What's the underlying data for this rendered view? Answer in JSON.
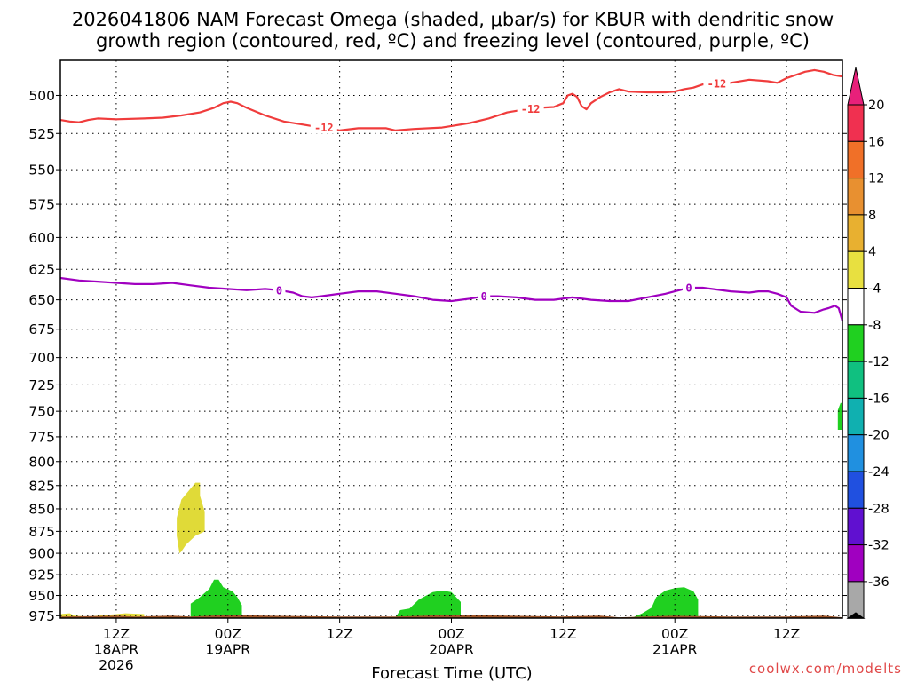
{
  "chart_data": {
    "type": "heatmap",
    "title_lines": [
      "2026041806 NAM Forecast Omega (shaded, μbar/s) for KBUR with dendritic snow",
      "growth region (contoured, red, ºC) and freezing level (contoured, purple, ºC)"
    ],
    "xlabel": "Forecast Time (UTC)",
    "y_ticks": [
      500,
      525,
      550,
      575,
      600,
      625,
      650,
      675,
      700,
      725,
      750,
      775,
      800,
      825,
      850,
      875,
      900,
      925,
      950,
      975
    ],
    "y_axis": "pressure (hPa), logarithmic, inverted",
    "ylim": [
      978,
      478
    ],
    "xlim_hours": [
      0,
      84
    ],
    "grid": true,
    "x_ticks": [
      {
        "hour": 6,
        "lines": [
          "12Z",
          "18APR",
          "2026"
        ]
      },
      {
        "hour": 18,
        "lines": [
          "00Z",
          "19APR"
        ]
      },
      {
        "hour": 30,
        "lines": [
          "12Z"
        ]
      },
      {
        "hour": 42,
        "lines": [
          "00Z",
          "20APR"
        ]
      },
      {
        "hour": 54,
        "lines": [
          "12Z"
        ]
      },
      {
        "hour": 66,
        "lines": [
          "00Z",
          "21APR"
        ]
      },
      {
        "hour": 78,
        "lines": [
          "12Z"
        ]
      }
    ],
    "colorbar": {
      "labels": [
        "20",
        "16",
        "12",
        "8",
        "4",
        "-4",
        "-8",
        "-12",
        "-16",
        "-20",
        "-24",
        "-28",
        "-32",
        "-36"
      ],
      "colors": [
        "#f03050",
        "#f07028",
        "#e89030",
        "#e8b030",
        "#e8e040",
        "#ffffff",
        "#20d020",
        "#10c080",
        "#10b0b0",
        "#2090e0",
        "#2050e0",
        "#6010d0",
        "#a000c0",
        "#a8a8a8"
      ],
      "top_arrow_color": "#e8207a",
      "bottom_arrow_color": "#000000"
    },
    "series": [
      {
        "contour": "red",
        "color": "#f03c3c",
        "labels": [
          {
            "hour": 28.3,
            "text": "-12"
          },
          {
            "hour": 50.5,
            "text": "-12"
          },
          {
            "hour": 70.5,
            "text": "-12"
          }
        ],
        "points": [
          [
            0,
            516
          ],
          [
            1,
            517
          ],
          [
            2,
            517.5
          ],
          [
            3,
            516
          ],
          [
            4,
            515
          ],
          [
            6,
            515.5
          ],
          [
            9,
            515
          ],
          [
            11,
            514.5
          ],
          [
            13,
            513
          ],
          [
            15,
            511
          ],
          [
            16.5,
            508
          ],
          [
            17.5,
            505
          ],
          [
            18.3,
            504
          ],
          [
            19,
            505
          ],
          [
            20,
            508
          ],
          [
            22,
            513
          ],
          [
            24,
            517
          ],
          [
            26,
            519
          ],
          [
            27,
            520
          ],
          [
            28.3,
            521
          ],
          [
            30,
            523
          ],
          [
            32,
            521.5
          ],
          [
            35,
            521.5
          ],
          [
            36,
            523
          ],
          [
            38,
            522
          ],
          [
            41,
            521
          ],
          [
            42,
            520
          ],
          [
            44,
            518
          ],
          [
            46,
            515
          ],
          [
            48,
            511
          ],
          [
            50,
            509
          ],
          [
            51.5,
            508
          ],
          [
            53,
            507.5
          ],
          [
            54,
            505
          ],
          [
            54.5,
            500
          ],
          [
            55,
            499
          ],
          [
            55.5,
            501
          ],
          [
            56,
            507
          ],
          [
            56.5,
            509
          ],
          [
            57,
            505
          ],
          [
            58,
            501
          ],
          [
            59,
            498
          ],
          [
            60,
            496
          ],
          [
            61,
            497.5
          ],
          [
            63,
            498
          ],
          [
            65,
            498
          ],
          [
            66,
            497.5
          ],
          [
            67,
            496
          ],
          [
            68,
            495
          ],
          [
            69,
            493
          ],
          [
            70.5,
            492.5
          ],
          [
            72,
            492
          ],
          [
            74,
            490
          ],
          [
            76,
            491
          ],
          [
            77,
            492
          ],
          [
            78,
            489
          ],
          [
            80,
            485
          ],
          [
            81,
            484
          ],
          [
            82,
            485
          ],
          [
            83,
            487
          ],
          [
            84,
            488
          ]
        ]
      },
      {
        "contour": "purple",
        "color": "#a000c0",
        "labels": [
          {
            "hour": 23.5,
            "text": "0"
          },
          {
            "hour": 45.5,
            "text": "0"
          },
          {
            "hour": 67.5,
            "text": "0"
          }
        ],
        "points": [
          [
            0,
            632
          ],
          [
            2,
            634
          ],
          [
            4,
            635
          ],
          [
            6,
            636
          ],
          [
            8,
            637
          ],
          [
            10,
            637
          ],
          [
            12,
            636
          ],
          [
            14,
            638
          ],
          [
            16,
            640
          ],
          [
            18,
            641
          ],
          [
            20,
            642
          ],
          [
            22,
            641
          ],
          [
            23.5,
            642
          ],
          [
            25,
            644
          ],
          [
            26,
            647
          ],
          [
            27,
            648
          ],
          [
            28,
            647
          ],
          [
            30,
            645
          ],
          [
            32,
            643
          ],
          [
            34,
            643
          ],
          [
            36,
            645
          ],
          [
            38,
            647
          ],
          [
            40,
            650
          ],
          [
            42,
            651
          ],
          [
            44,
            649
          ],
          [
            45.5,
            647
          ],
          [
            47,
            647
          ],
          [
            49,
            648
          ],
          [
            51,
            650
          ],
          [
            53,
            650
          ],
          [
            55,
            648
          ],
          [
            57,
            650
          ],
          [
            59,
            651
          ],
          [
            61,
            651
          ],
          [
            63,
            648
          ],
          [
            65,
            645
          ],
          [
            66,
            643
          ],
          [
            67.5,
            640
          ],
          [
            69,
            640
          ],
          [
            70,
            641
          ],
          [
            72,
            643
          ],
          [
            74,
            644
          ],
          [
            75,
            643
          ],
          [
            76,
            643
          ],
          [
            77,
            645
          ],
          [
            78,
            648
          ],
          [
            78.5,
            655
          ],
          [
            79.5,
            660
          ],
          [
            81,
            661
          ],
          [
            82,
            658
          ],
          [
            82.5,
            657
          ],
          [
            83.2,
            655
          ],
          [
            83.6,
            657
          ],
          [
            84,
            668
          ]
        ]
      }
    ],
    "omega_shaded": [
      {
        "value_range": [
          4,
          8
        ],
        "color": "#e0da38",
        "region": "hour 12.5–15.5, 822–900 hPa",
        "points": [
          [
            14.5,
            822
          ],
          [
            15,
            822
          ],
          [
            15,
            836
          ],
          [
            15.5,
            853
          ],
          [
            15.5,
            875
          ],
          [
            14.5,
            880
          ],
          [
            13.5,
            890
          ],
          [
            13,
            898
          ],
          [
            12.8,
            900
          ],
          [
            12.5,
            880
          ],
          [
            12.5,
            860
          ],
          [
            13,
            840
          ]
        ]
      },
      {
        "value_range": [
          4,
          8
        ],
        "color": "#e0da38",
        "region": "hour 0–9, 970–978 hPa",
        "points": [
          [
            0,
            977
          ],
          [
            0,
            973
          ],
          [
            1,
            972
          ],
          [
            1.5,
            975
          ],
          [
            3,
            976
          ],
          [
            5,
            974
          ],
          [
            7,
            972
          ],
          [
            9,
            973
          ],
          [
            9,
            976
          ],
          [
            6,
            977
          ],
          [
            3,
            977
          ]
        ]
      },
      {
        "value_range": [
          -8,
          -4
        ],
        "color": "#20d020",
        "region": "hour 14–19.5, 930–978 hPa",
        "points": [
          [
            14,
            977
          ],
          [
            14,
            960
          ],
          [
            15,
            952
          ],
          [
            16,
            942
          ],
          [
            16.5,
            931
          ],
          [
            17,
            931
          ],
          [
            17.5,
            940
          ],
          [
            18.5,
            945
          ],
          [
            19,
            952
          ],
          [
            19.5,
            962
          ],
          [
            19.5,
            977
          ]
        ]
      },
      {
        "value_range": [
          -8,
          -4
        ],
        "color": "#20d020",
        "region": "hour 36–43, 940–978 hPa",
        "points": [
          [
            36,
            977
          ],
          [
            36.5,
            968
          ],
          [
            37.5,
            966
          ],
          [
            38.5,
            955
          ],
          [
            40,
            946
          ],
          [
            41,
            944
          ],
          [
            42,
            946
          ],
          [
            43,
            958
          ],
          [
            43,
            977
          ]
        ]
      },
      {
        "value_range": [
          -8,
          -4
        ],
        "color": "#20d020",
        "region": "hour 61.5–68.5, 937–978 hPa",
        "points": [
          [
            61.5,
            977
          ],
          [
            62.5,
            972
          ],
          [
            63.5,
            965
          ],
          [
            64,
            952
          ],
          [
            65,
            944
          ],
          [
            66,
            941
          ],
          [
            67,
            940
          ],
          [
            68,
            945
          ],
          [
            68.5,
            955
          ],
          [
            68.5,
            977
          ]
        ]
      },
      {
        "value_range": [
          -8,
          -4
        ],
        "color": "#20d020",
        "region": "hour 83.5–84, 740–770 hPa",
        "points": [
          [
            83.5,
            768
          ],
          [
            83.5,
            749
          ],
          [
            83.8,
            742
          ],
          [
            84,
            742
          ],
          [
            84,
            768
          ]
        ]
      }
    ],
    "terrain": {
      "color": "#a05528",
      "points": [
        [
          0,
          985
        ],
        [
          0,
          976
        ],
        [
          6,
          975
        ],
        [
          8,
          976
        ],
        [
          12,
          975
        ],
        [
          14,
          976
        ],
        [
          18,
          974
        ],
        [
          22,
          975
        ],
        [
          30,
          976
        ],
        [
          36,
          976
        ],
        [
          42,
          974
        ],
        [
          48,
          975
        ],
        [
          54,
          976
        ],
        [
          58,
          975
        ],
        [
          60,
          977
        ],
        [
          66,
          975
        ],
        [
          72,
          976
        ],
        [
          78,
          976
        ],
        [
          82,
          975
        ],
        [
          84,
          977
        ],
        [
          84,
          985
        ]
      ]
    },
    "credit": "coolwx.com/modelts"
  }
}
